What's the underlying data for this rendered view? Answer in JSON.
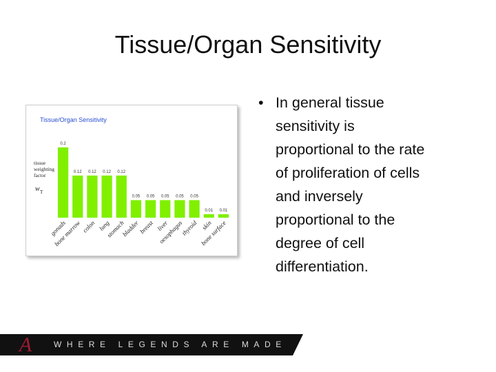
{
  "title": "Tissue/Organ Sensitivity",
  "chart_data": {
    "type": "bar",
    "title": "Tissue/Organ Sensitivity",
    "ylabel": "tissue weighting factor",
    "ysymbol": "w",
    "ysymbol_sub": "T",
    "categories": [
      "gonads",
      "bone marrow",
      "colon",
      "lung",
      "stomach",
      "bladder",
      "breast",
      "liver",
      "oesophagus",
      "thyroid",
      "skin",
      "bone surface"
    ],
    "values": [
      0.2,
      0.12,
      0.12,
      0.12,
      0.12,
      0.05,
      0.05,
      0.05,
      0.05,
      0.05,
      0.01,
      0.01
    ],
    "color": "#80f000",
    "ylim": [
      0,
      0.2
    ]
  },
  "bullet": {
    "lines": [
      "In general tissue",
      "sensitivity is",
      "proportional to the rate",
      "of proliferation of cells",
      "and inversely",
      "proportional to the",
      "degree of cell",
      "differentiation."
    ]
  },
  "footer": {
    "logo": "A",
    "tagline": "WHERE LEGENDS ARE MADE"
  }
}
